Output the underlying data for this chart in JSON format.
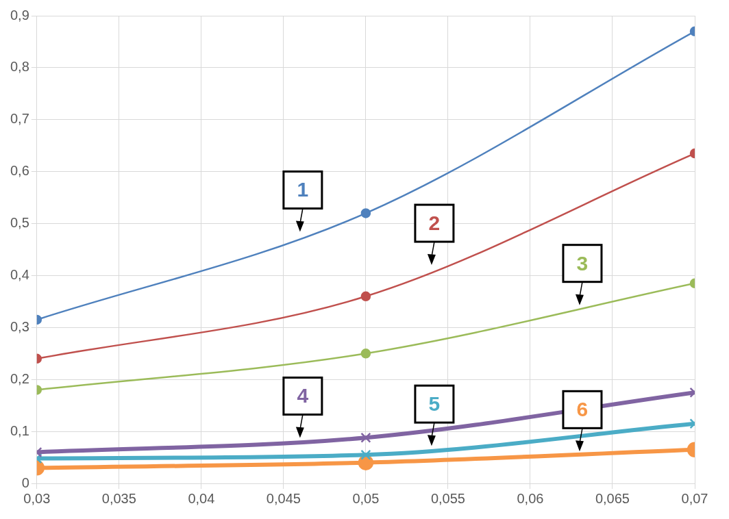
{
  "chart_data": {
    "type": "line",
    "x": [
      0.03,
      0.05,
      0.07
    ],
    "series": [
      {
        "name": "1",
        "color": "#4f81bd",
        "values": [
          0.315,
          0.52,
          0.87
        ],
        "marker": "circle"
      },
      {
        "name": "2",
        "color": "#c0504d",
        "values": [
          0.24,
          0.36,
          0.635
        ],
        "marker": "circle"
      },
      {
        "name": "3",
        "color": "#9bbb59",
        "values": [
          0.18,
          0.25,
          0.385
        ],
        "marker": "circle"
      },
      {
        "name": "4",
        "color": "#8064a2",
        "values": [
          0.06,
          0.088,
          0.175
        ],
        "marker": "cross"
      },
      {
        "name": "5",
        "color": "#4bacc6",
        "values": [
          0.048,
          0.055,
          0.115
        ],
        "marker": "cross"
      },
      {
        "name": "6",
        "color": "#f79646",
        "values": [
          0.03,
          0.04,
          0.065
        ],
        "marker": "circle"
      }
    ],
    "xlim": [
      0.03,
      0.07
    ],
    "xticks": [
      {
        "value": 0.03,
        "label": "0,03"
      },
      {
        "value": 0.035,
        "label": "0,035"
      },
      {
        "value": 0.04,
        "label": "0,04"
      },
      {
        "value": 0.045,
        "label": "0,045"
      },
      {
        "value": 0.05,
        "label": "0,05"
      },
      {
        "value": 0.055,
        "label": "0,055"
      },
      {
        "value": 0.06,
        "label": "0,06"
      },
      {
        "value": 0.065,
        "label": "0,065"
      },
      {
        "value": 0.07,
        "label": "0,07"
      }
    ],
    "ylim": [
      0,
      0.9
    ],
    "yticks": [
      0,
      {
        "value": 0.1,
        "label": "0,1"
      },
      {
        "value": 0.2,
        "label": "0,2"
      },
      {
        "value": 0.3,
        "label": "0,3"
      },
      {
        "value": 0.4,
        "label": "0,4"
      },
      {
        "value": 0.5,
        "label": "0,5"
      },
      {
        "value": 0.6,
        "label": "0,6"
      },
      {
        "value": 0.7,
        "label": "0,7"
      },
      {
        "value": 0.8,
        "label": "0,8"
      },
      {
        "value": 0.9,
        "label": "0,9"
      }
    ],
    "grid": true,
    "legend": false
  }
}
